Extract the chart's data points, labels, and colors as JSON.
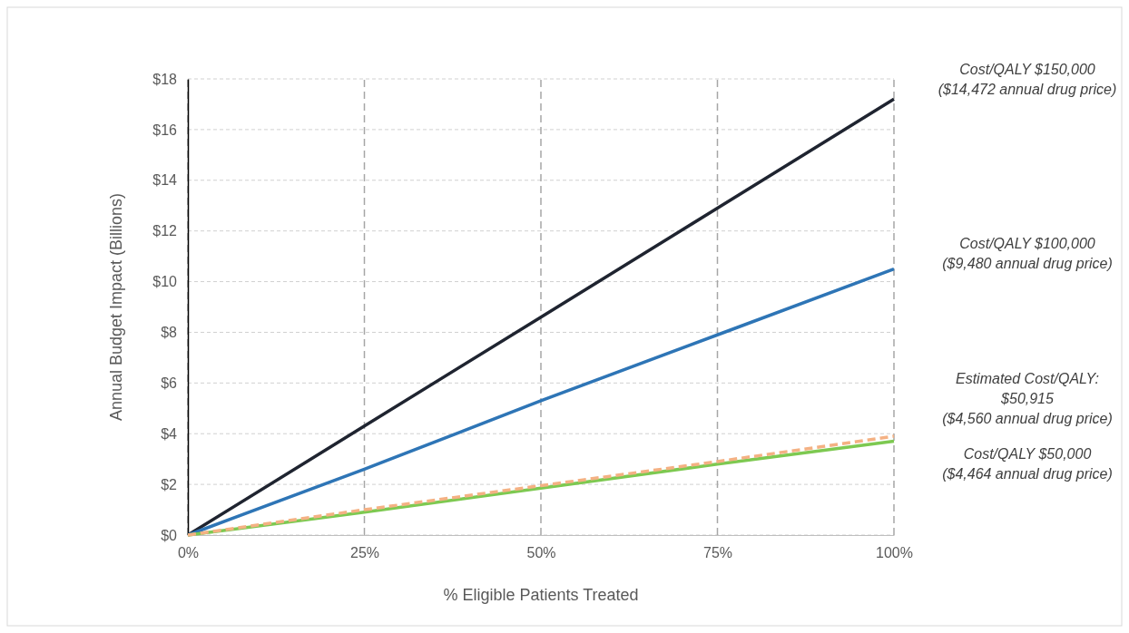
{
  "chart_data": {
    "type": "line",
    "xlabel": "% Eligible Patients Treated",
    "ylabel": "Annual Budget Impact  (Billions)",
    "xlim": [
      0,
      100
    ],
    "xticks": [
      {
        "value": 0,
        "label": "0%"
      },
      {
        "value": 25,
        "label": "25%"
      },
      {
        "value": 50,
        "label": "50%"
      },
      {
        "value": 75,
        "label": "75%"
      },
      {
        "value": 100,
        "label": "100%"
      }
    ],
    "ylim": [
      0,
      18
    ],
    "yticks": [
      {
        "value": 0,
        "label": "$0"
      },
      {
        "value": 2,
        "label": "$2"
      },
      {
        "value": 4,
        "label": "$4"
      },
      {
        "value": 6,
        "label": "$6"
      },
      {
        "value": 8,
        "label": "$8"
      },
      {
        "value": 10,
        "label": "$10"
      },
      {
        "value": 12,
        "label": "$12"
      },
      {
        "value": 14,
        "label": "$14"
      },
      {
        "value": 16,
        "label": "$16"
      },
      {
        "value": 18,
        "label": "$18"
      }
    ],
    "grid": true,
    "marker": "none",
    "x": [
      0,
      25,
      50,
      75,
      100
    ],
    "series": [
      {
        "name": "Cost/QALY $150,000\n($14,472 annual drug price)",
        "color": "#1f2430",
        "values": [
          0,
          4.3,
          8.6,
          12.9,
          17.2
        ],
        "line_style": "solid"
      },
      {
        "name": "Cost/QALY $100,000\n($9,480 annual drug price)",
        "color": "#2e75b6",
        "values": [
          0,
          2.6,
          5.3,
          7.9,
          10.5
        ],
        "line_style": "solid"
      },
      {
        "name": "Cost/QALY $50,000\n($4,464 annual drug price)",
        "color": "#7dc951",
        "values": [
          0,
          0.9,
          1.85,
          2.8,
          3.7
        ],
        "line_style": "solid"
      },
      {
        "name": "Estimated Cost/QALY:\n$50,915\n($4,560 annual drug price)",
        "color": "#f4b183",
        "values": [
          0,
          1,
          1.95,
          2.9,
          3.9
        ],
        "line_style": "dashed"
      }
    ]
  }
}
